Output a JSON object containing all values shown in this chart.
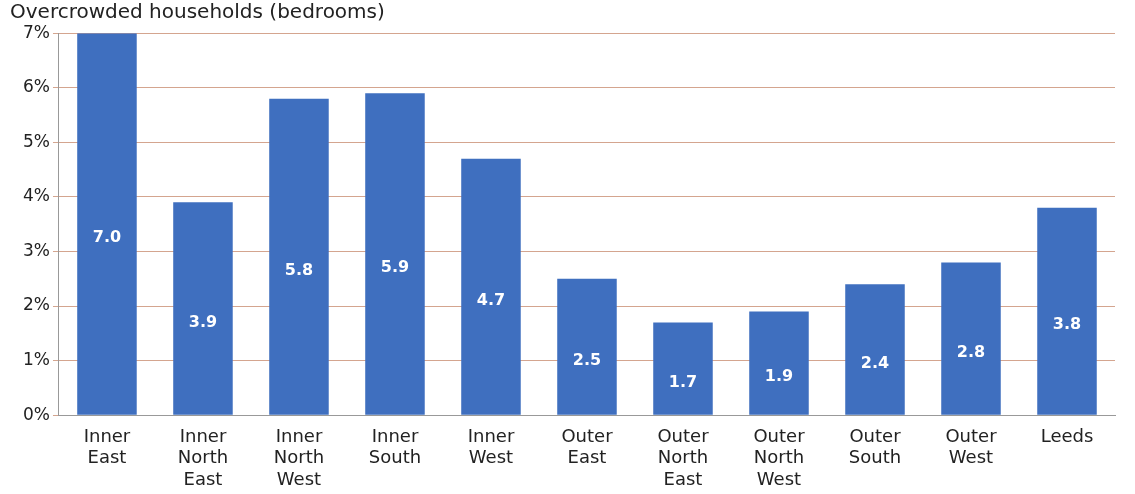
{
  "chart_data": {
    "type": "bar",
    "title": "Overcrowded households (bedrooms)",
    "categories": [
      "Inner East",
      "Inner North East",
      "Inner North West",
      "Inner South",
      "Inner West",
      "Outer East",
      "Outer North East",
      "Outer North West",
      "Outer South",
      "Outer West",
      "Leeds"
    ],
    "values": [
      7.0,
      3.9,
      5.8,
      5.9,
      4.7,
      2.5,
      1.7,
      1.9,
      2.4,
      2.8,
      3.8
    ],
    "value_labels": [
      "7.0",
      "3.9",
      "5.8",
      "5.9",
      "4.7",
      "2.5",
      "1.7",
      "1.9",
      "2.4",
      "2.8",
      "3.8"
    ],
    "color": "#3f6fbf",
    "ylim": [
      0,
      7
    ],
    "yticks": [
      {
        "value": 0,
        "label": "0%"
      },
      {
        "value": 1,
        "label": "1%"
      },
      {
        "value": 2,
        "label": "2%"
      },
      {
        "value": 3,
        "label": "3%"
      },
      {
        "value": 4,
        "label": "4%"
      },
      {
        "value": 5,
        "label": "5%"
      },
      {
        "value": 6,
        "label": "6%"
      },
      {
        "value": 7,
        "label": "7%"
      }
    ],
    "grid": "y",
    "legend": false
  }
}
